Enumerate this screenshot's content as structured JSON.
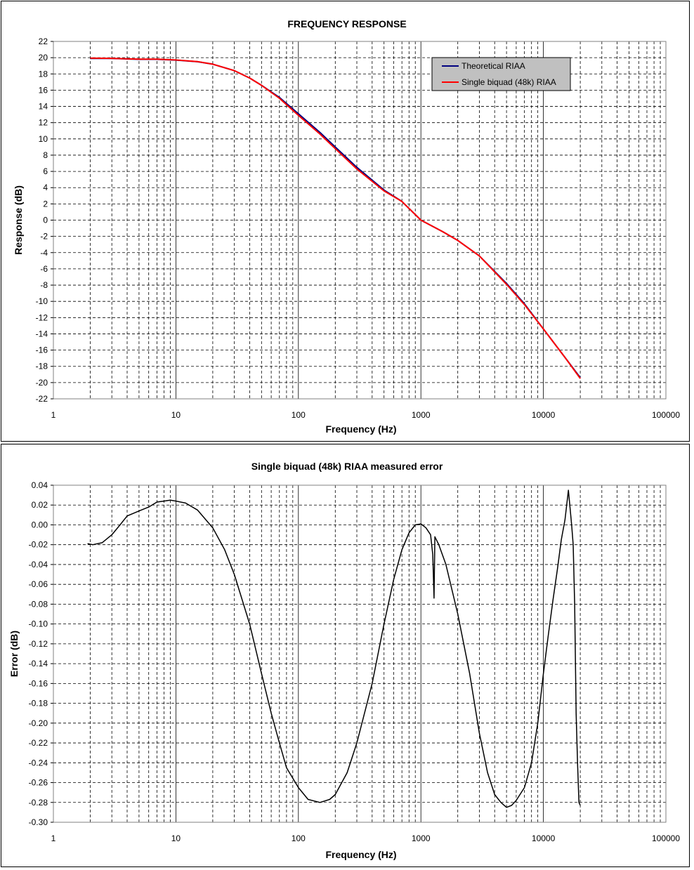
{
  "chart_data": [
    {
      "type": "line",
      "title": "FREQUENCY RESPONSE",
      "xlabel": "Frequency (Hz)",
      "ylabel": "Response (dB)",
      "xscale": "log",
      "xlim": [
        1,
        100000
      ],
      "ylim": [
        -22,
        22
      ],
      "x_ticks": [
        "1",
        "10",
        "100",
        "1000",
        "10000",
        "100000"
      ],
      "y_ticks": [
        "22",
        "20",
        "18",
        "16",
        "14",
        "12",
        "10",
        "8",
        "6",
        "4",
        "2",
        "0",
        "-2",
        "-4",
        "-6",
        "-8",
        "-10",
        "-12",
        "-14",
        "-16",
        "-18",
        "-20",
        "-22"
      ],
      "grid": true,
      "legend_position": "top-right",
      "series": [
        {
          "name": "Theoretical RIAA",
          "color": "#000080",
          "x": [
            2,
            3,
            5,
            7,
            10,
            15,
            20,
            30,
            40,
            50,
            70,
            100,
            150,
            200,
            300,
            500,
            700,
            1000,
            1500,
            2000,
            3000,
            5000,
            7000,
            10000,
            15000,
            20000
          ],
          "y": [
            19.9,
            19.9,
            19.8,
            19.8,
            19.7,
            19.5,
            19.2,
            18.4,
            17.5,
            16.6,
            15.1,
            13.1,
            10.8,
            9.0,
            6.5,
            3.7,
            2.3,
            0.0,
            -1.4,
            -2.5,
            -4.4,
            -7.8,
            -10.3,
            -13.4,
            -16.9,
            -19.4
          ]
        },
        {
          "name": "Single biquad (48k) RIAA",
          "color": "#ff0000",
          "x": [
            2,
            3,
            5,
            7,
            10,
            15,
            20,
            30,
            40,
            50,
            70,
            100,
            150,
            200,
            300,
            500,
            700,
            1000,
            1500,
            2000,
            3000,
            5000,
            7000,
            10000,
            15000,
            20000
          ],
          "y": [
            19.95,
            19.92,
            19.82,
            19.82,
            19.72,
            19.52,
            19.2,
            18.4,
            17.5,
            16.6,
            15.0,
            12.9,
            10.6,
            8.8,
            6.3,
            3.6,
            2.3,
            0.0,
            -1.4,
            -2.5,
            -4.4,
            -7.9,
            -10.4,
            -13.4,
            -16.9,
            -19.5
          ]
        }
      ]
    },
    {
      "type": "line",
      "title": "Single biquad (48k) RIAA measured error",
      "xlabel": "Frequency (Hz)",
      "ylabel": "Error (dB)",
      "xscale": "log",
      "xlim": [
        1,
        100000
      ],
      "ylim": [
        -0.3,
        0.04
      ],
      "x_ticks": [
        "1",
        "10",
        "100",
        "1000",
        "10000",
        "100000"
      ],
      "y_ticks": [
        "0.04",
        "0.02",
        "0.00",
        "-0.02",
        "-0.04",
        "-0.06",
        "-0.08",
        "-0.10",
        "-0.12",
        "-0.14",
        "-0.16",
        "-0.18",
        "-0.20",
        "-0.22",
        "-0.24",
        "-0.26",
        "-0.28",
        "-0.30"
      ],
      "grid": true,
      "series": [
        {
          "color": "#000000",
          "x": [
            1.9,
            2.1,
            2.5,
            3.0,
            3.5,
            4.0,
            5.0,
            6.0,
            7.0,
            8.0,
            9.0,
            10.0,
            12.0,
            15.0,
            20.0,
            25.0,
            30.0,
            40.0,
            50.0,
            60.0,
            70.0,
            80.0,
            100.0,
            120.0,
            150.0,
            180.0,
            200.0,
            250.0,
            300.0,
            400.0,
            500.0,
            600.0,
            700.0,
            800.0,
            900.0,
            1000.0,
            1100.0,
            1200.0,
            1250.0,
            1280.0,
            1300.0,
            1400.0,
            1600.0,
            2000.0,
            2500.0,
            3000.0,
            3500.0,
            4000.0,
            4500.0,
            5000.0,
            5500.0,
            6000.0,
            7000.0,
            8000.0,
            9000.0,
            10000.0,
            11000.0,
            12000.0,
            13000.0,
            14000.0,
            15000.0,
            16000.0,
            17000.0,
            17500.0,
            18000.0,
            18500.0,
            19000.0,
            19500.0,
            20000.0
          ],
          "y": [
            -0.019,
            -0.02,
            -0.018,
            -0.01,
            0.0,
            0.009,
            0.014,
            0.018,
            0.023,
            0.024,
            0.025,
            0.024,
            0.022,
            0.015,
            -0.003,
            -0.025,
            -0.05,
            -0.1,
            -0.15,
            -0.19,
            -0.22,
            -0.245,
            -0.265,
            -0.277,
            -0.28,
            -0.277,
            -0.272,
            -0.25,
            -0.22,
            -0.16,
            -0.1,
            -0.055,
            -0.025,
            -0.008,
            0.0,
            0.001,
            -0.003,
            -0.01,
            -0.03,
            -0.074,
            -0.012,
            -0.02,
            -0.04,
            -0.09,
            -0.15,
            -0.21,
            -0.25,
            -0.272,
            -0.28,
            -0.285,
            -0.283,
            -0.278,
            -0.265,
            -0.24,
            -0.2,
            -0.15,
            -0.11,
            -0.075,
            -0.045,
            -0.015,
            0.005,
            0.035,
            0.0,
            -0.02,
            -0.08,
            -0.19,
            -0.24,
            -0.28,
            -0.283
          ]
        }
      ]
    }
  ]
}
